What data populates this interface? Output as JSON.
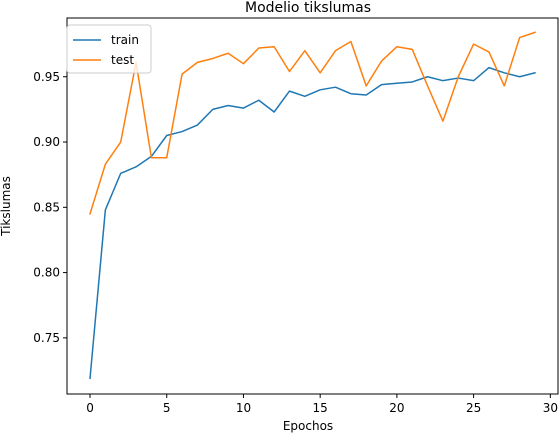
{
  "chart_data": {
    "type": "line",
    "title": "Modelio tikslumas",
    "xlabel": "Epochos",
    "ylabel": "Tikslumas",
    "xlim": [
      -1.5,
      30.5
    ],
    "ylim": [
      0.707,
      0.995
    ],
    "xticks": [
      0,
      5,
      10,
      15,
      20,
      25,
      30
    ],
    "yticks": [
      0.75,
      0.8,
      0.85,
      0.9,
      0.95
    ],
    "ytick_labels": [
      "0.75",
      "0.80",
      "0.85",
      "0.90",
      "0.95"
    ],
    "grid": false,
    "legend_position": "top-left",
    "x": [
      0,
      1,
      2,
      3,
      4,
      5,
      6,
      7,
      8,
      9,
      10,
      11,
      12,
      13,
      14,
      15,
      16,
      17,
      18,
      19,
      20,
      21,
      22,
      23,
      24,
      25,
      26,
      27,
      28,
      29
    ],
    "series": [
      {
        "name": "train",
        "color": "#1f77b4",
        "values": [
          0.719,
          0.848,
          0.876,
          0.881,
          0.889,
          0.905,
          0.908,
          0.913,
          0.925,
          0.928,
          0.926,
          0.932,
          0.923,
          0.939,
          0.935,
          0.94,
          0.942,
          0.937,
          0.936,
          0.944,
          0.945,
          0.946,
          0.95,
          0.947,
          0.949,
          0.947,
          0.957,
          0.953,
          0.95,
          0.953
        ]
      },
      {
        "name": "test",
        "color": "#ff7f0e",
        "values": [
          0.845,
          0.883,
          0.9,
          0.961,
          0.888,
          0.888,
          0.952,
          0.961,
          0.964,
          0.968,
          0.96,
          0.972,
          0.973,
          0.954,
          0.97,
          0.953,
          0.97,
          0.977,
          0.943,
          0.962,
          0.973,
          0.971,
          0.943,
          0.916,
          0.95,
          0.975,
          0.969,
          0.943,
          0.98,
          0.984
        ]
      }
    ]
  }
}
